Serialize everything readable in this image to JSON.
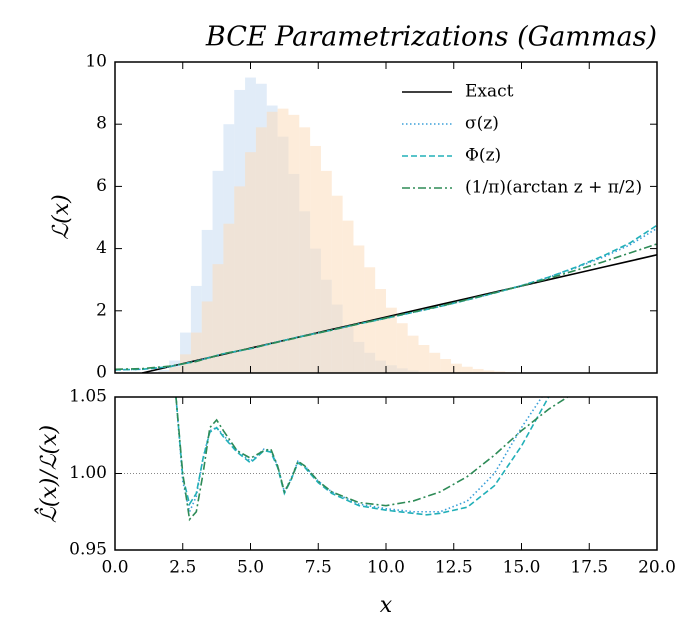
{
  "chart_data": [
    {
      "type": "line",
      "title": "BCE Parametrizations (Gammas)",
      "ylabel": "ℒ(x)",
      "xlim": [
        0,
        20
      ],
      "ylim": [
        0,
        10
      ],
      "yticks": [
        0,
        2,
        4,
        6,
        8,
        10
      ],
      "xticks": [
        0,
        2.5,
        5,
        7.5,
        10,
        12.5,
        15,
        17.5,
        20
      ],
      "legend": "upper right",
      "bins": [
        0,
        0.4,
        0.8,
        1.2,
        1.6,
        2,
        2.4,
        2.8,
        3.2,
        3.6,
        4,
        4.4,
        4.8,
        5.2,
        5.6,
        6,
        6.4,
        6.8,
        7.2,
        7.6,
        8,
        8.4,
        8.8,
        9.2,
        9.6,
        10,
        10.4,
        10.8,
        11.2,
        11.6,
        12,
        12.4,
        12.8,
        13.2,
        13.6,
        14,
        14.4,
        14.8,
        15.2,
        15.6,
        16,
        16.4,
        16.8,
        17.2,
        17.6,
        18,
        18.4,
        18.8,
        19.2,
        19.6,
        20
      ],
      "histograms": [
        {
          "color": "#c9ddf2",
          "counts": [
            0,
            0,
            0,
            0.02,
            0.1,
            0.4,
            1.3,
            2.8,
            4.6,
            6.5,
            8.0,
            9.1,
            9.5,
            9.3,
            8.6,
            7.6,
            6.4,
            5.2,
            4.0,
            3.0,
            2.2,
            1.5,
            1.0,
            0.65,
            0.4,
            0.25,
            0.15,
            0.08,
            0.04,
            0.02,
            0,
            0,
            0,
            0,
            0,
            0,
            0,
            0,
            0,
            0,
            0,
            0,
            0,
            0,
            0,
            0,
            0,
            0,
            0,
            0
          ]
        },
        {
          "color": "#fbdcbc",
          "counts": [
            0,
            0,
            0,
            0.01,
            0.05,
            0.2,
            0.6,
            1.3,
            2.3,
            3.5,
            4.8,
            6.0,
            7.1,
            7.9,
            8.4,
            8.5,
            8.3,
            7.9,
            7.3,
            6.5,
            5.7,
            4.9,
            4.1,
            3.4,
            2.7,
            2.1,
            1.6,
            1.2,
            0.9,
            0.65,
            0.45,
            0.3,
            0.2,
            0.13,
            0.08,
            0.05,
            0.03,
            0.01,
            0,
            0,
            0,
            0,
            0,
            0,
            0,
            0,
            0,
            0,
            0,
            0
          ]
        }
      ],
      "x": [
        0,
        1,
        2,
        3,
        4,
        5,
        6,
        7,
        8,
        9,
        10,
        11,
        12,
        13,
        14,
        15,
        16,
        17,
        18,
        19,
        20
      ],
      "series": [
        {
          "name": "Exact",
          "color": "#000000",
          "dash": "",
          "values": [
            null,
            0,
            0.2,
            0.4,
            0.6,
            0.8,
            1.0,
            1.2,
            1.4,
            1.6,
            1.8,
            2.0,
            2.2,
            2.4,
            2.6,
            2.8,
            3.0,
            3.2,
            3.4,
            3.6,
            3.8
          ]
        },
        {
          "name": "σ(z)",
          "color": "#3a9fd8",
          "dash": "1.5 2.5",
          "values": [
            0.1,
            0.12,
            0.2,
            0.38,
            0.62,
            0.78,
            1.0,
            1.2,
            1.38,
            1.58,
            1.76,
            1.95,
            2.14,
            2.35,
            2.57,
            2.81,
            3.08,
            3.38,
            3.72,
            4.12,
            4.65
          ]
        },
        {
          "name": "Φ(z)",
          "color": "#22b0b8",
          "dash": "6 3",
          "values": [
            0.1,
            0.12,
            0.2,
            0.38,
            0.62,
            0.78,
            1.0,
            1.2,
            1.38,
            1.58,
            1.76,
            1.95,
            2.14,
            2.35,
            2.57,
            2.81,
            3.08,
            3.4,
            3.76,
            4.18,
            4.75
          ]
        },
        {
          "name": "(1/π)(arctan z + π/2)",
          "color": "#2e8b57",
          "dash": "8 3 2 3",
          "values": [
            0.12,
            0.14,
            0.22,
            0.37,
            0.62,
            0.79,
            0.99,
            1.19,
            1.38,
            1.58,
            1.77,
            1.96,
            2.15,
            2.36,
            2.58,
            2.8,
            3.04,
            3.3,
            3.57,
            3.86,
            4.15
          ]
        }
      ]
    },
    {
      "type": "line",
      "ylabel": "ℒ̂(x)/ℒ(x)",
      "xlabel": "x",
      "xlim": [
        0,
        20
      ],
      "ylim": [
        0.95,
        1.05
      ],
      "yticks": [
        0.95,
        {
          "value": 1.0,
          "label": "1.00"
        },
        1.05
      ],
      "xticks": [
        {
          "value": 0,
          "label": "0.0"
        },
        2.5,
        {
          "value": 5,
          "label": "5.0"
        },
        7.5,
        {
          "value": 10,
          "label": "10.0"
        },
        12.5,
        {
          "value": 15,
          "label": "15.0"
        },
        17.5,
        {
          "value": 20,
          "label": "20.0"
        }
      ],
      "reference": 1.0,
      "series": [
        {
          "name": "σ(z)",
          "color": "#3a9fd8",
          "dash": "1.5 2.5",
          "x": [
            2.25,
            2.5,
            2.75,
            3,
            3.25,
            3.5,
            3.75,
            4,
            4.5,
            5,
            5.5,
            5.75,
            6,
            6.25,
            6.5,
            6.75,
            7,
            7.5,
            8,
            9,
            10,
            11,
            12,
            13,
            14,
            15,
            15.75
          ],
          "values": [
            1.05,
            0.995,
            0.975,
            0.985,
            1.01,
            1.028,
            1.03,
            1.025,
            1.015,
            1.008,
            1.016,
            1.015,
            1.005,
            0.988,
            0.997,
            1.008,
            1.005,
            0.995,
            0.988,
            0.98,
            0.977,
            0.975,
            0.975,
            0.982,
            1.0,
            1.03,
            1.05
          ]
        },
        {
          "name": "Φ(z)",
          "color": "#22b0b8",
          "dash": "6 3",
          "x": [
            2.25,
            2.5,
            2.75,
            3,
            3.25,
            3.5,
            3.75,
            4,
            4.5,
            5,
            5.5,
            5.75,
            6,
            6.25,
            6.5,
            6.75,
            7,
            7.5,
            8,
            9,
            10,
            11,
            11.5,
            12,
            13,
            14,
            15,
            16
          ],
          "values": [
            1.05,
            0.998,
            0.98,
            0.987,
            1.01,
            1.027,
            1.03,
            1.024,
            1.014,
            1.007,
            1.015,
            1.014,
            1.004,
            0.987,
            0.996,
            1.007,
            1.004,
            0.994,
            0.987,
            0.979,
            0.976,
            0.974,
            0.973,
            0.974,
            0.978,
            0.992,
            1.018,
            1.05
          ]
        },
        {
          "name": "(1/π)(arctan z + π/2)",
          "color": "#2e8b57",
          "dash": "8 3 2 3",
          "x": [
            2.25,
            2.5,
            2.75,
            3,
            3.25,
            3.5,
            3.75,
            4,
            4.5,
            5,
            5.5,
            5.75,
            6,
            6.25,
            6.5,
            6.75,
            7,
            7.5,
            8,
            9,
            10,
            11,
            12,
            13,
            14,
            15,
            16,
            16.7
          ],
          "values": [
            1.05,
            1.0,
            0.97,
            0.975,
            1.0,
            1.03,
            1.035,
            1.028,
            1.015,
            1.01,
            1.015,
            1.016,
            1.005,
            0.988,
            0.996,
            1.008,
            1.005,
            0.995,
            0.988,
            0.981,
            0.979,
            0.982,
            0.988,
            0.998,
            1.012,
            1.028,
            1.042,
            1.05
          ]
        }
      ]
    }
  ]
}
